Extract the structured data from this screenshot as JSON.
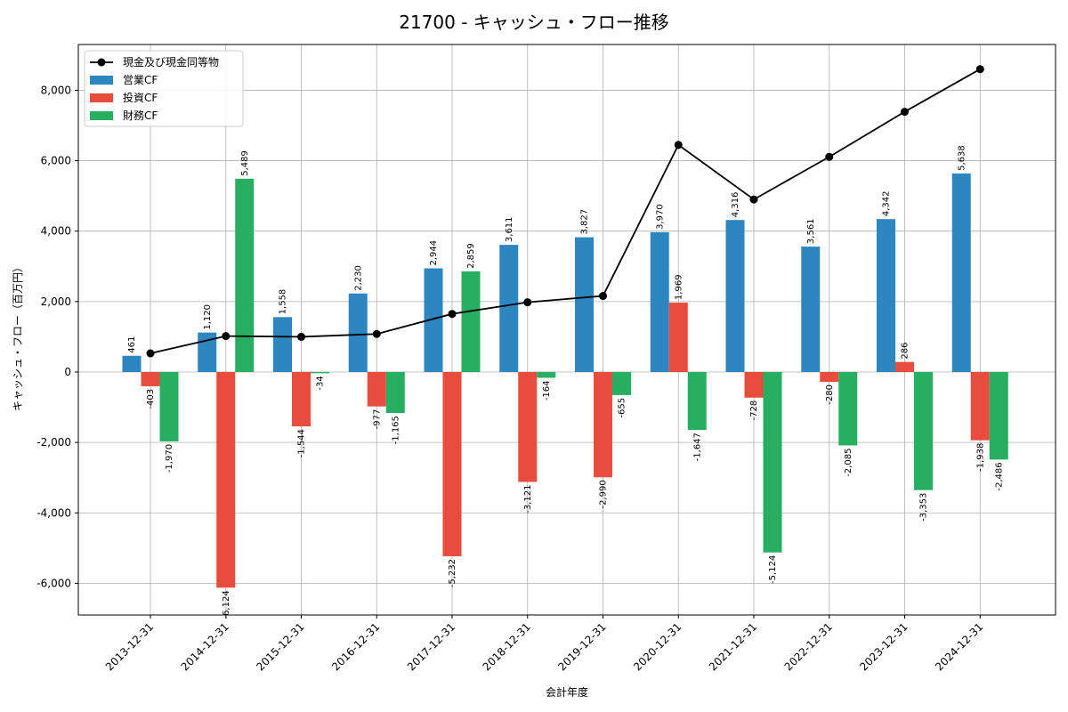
{
  "chart_data": {
    "type": "bar",
    "title": "21700 - キャッシュ・フロー推移",
    "xlabel": "会計年度",
    "ylabel": "キャッシュ・フロー（百万円）",
    "categories": [
      "2013-12-31",
      "2014-12-31",
      "2015-12-31",
      "2016-12-31",
      "2017-12-31",
      "2018-12-31",
      "2019-12-31",
      "2020-12-31",
      "2021-12-31",
      "2022-12-31",
      "2023-12-31",
      "2024-12-31"
    ],
    "series": [
      {
        "name": "営業CF",
        "type": "bar",
        "color": "#2e86c1",
        "values": [
          461,
          1120,
          1558,
          2230,
          2944,
          3611,
          3827,
          3970,
          4316,
          3561,
          4342,
          5638
        ]
      },
      {
        "name": "投資CF",
        "type": "bar",
        "color": "#e74c3c",
        "values": [
          -403,
          -6124,
          -1544,
          -977,
          -5232,
          -3121,
          -2990,
          1969,
          -728,
          -280,
          286,
          -1938
        ]
      },
      {
        "name": "財務CF",
        "type": "bar",
        "color": "#27ae60",
        "values": [
          -1970,
          5489,
          -34,
          -1165,
          2859,
          -164,
          -655,
          -1647,
          -5124,
          -2085,
          -3353,
          -2486
        ]
      },
      {
        "name": "現金及び現金同等物",
        "type": "line",
        "color": "#000000",
        "values": [
          530,
          1020,
          1000,
          1080,
          1650,
          1980,
          2160,
          6450,
          4900,
          6110,
          7390,
          8600
        ]
      }
    ],
    "legend_order": [
      "現金及び現金同等物",
      "営業CF",
      "投資CF",
      "財務CF"
    ],
    "ylim": [
      -6900,
      9300
    ],
    "yticks": [
      -6000,
      -4000,
      -2000,
      0,
      2000,
      4000,
      6000,
      8000
    ],
    "ytick_labels": [
      "-6,000",
      "-4,000",
      "-2,000",
      "0",
      "2,000",
      "4,000",
      "6,000",
      "8,000"
    ],
    "grid": true,
    "legend_position": "top-left"
  }
}
